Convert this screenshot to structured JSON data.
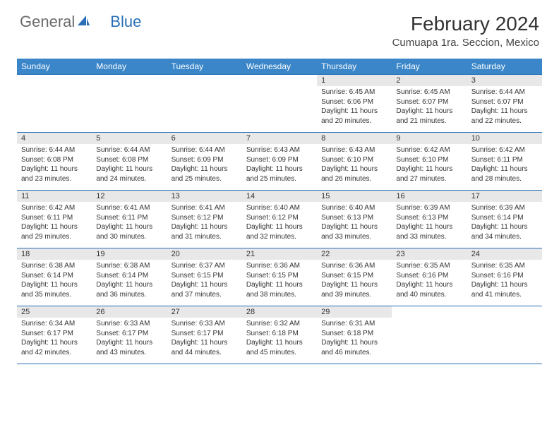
{
  "logo": {
    "text1": "General",
    "text2": "Blue"
  },
  "title": "February 2024",
  "location": "Cumuapa 1ra. Seccion, Mexico",
  "colors": {
    "header_bg": "#3a86c8",
    "header_text": "#ffffff",
    "border": "#2970b8",
    "daynum_bg": "#e8e8e8",
    "text": "#333333",
    "logo_gray": "#6a6a6a",
    "logo_blue": "#2970b8",
    "page_bg": "#ffffff"
  },
  "day_headers": [
    "Sunday",
    "Monday",
    "Tuesday",
    "Wednesday",
    "Thursday",
    "Friday",
    "Saturday"
  ],
  "weeks": [
    [
      {
        "n": "",
        "sr": "",
        "ss": "",
        "dl": ""
      },
      {
        "n": "",
        "sr": "",
        "ss": "",
        "dl": ""
      },
      {
        "n": "",
        "sr": "",
        "ss": "",
        "dl": ""
      },
      {
        "n": "",
        "sr": "",
        "ss": "",
        "dl": ""
      },
      {
        "n": "1",
        "sr": "Sunrise: 6:45 AM",
        "ss": "Sunset: 6:06 PM",
        "dl": "Daylight: 11 hours and 20 minutes."
      },
      {
        "n": "2",
        "sr": "Sunrise: 6:45 AM",
        "ss": "Sunset: 6:07 PM",
        "dl": "Daylight: 11 hours and 21 minutes."
      },
      {
        "n": "3",
        "sr": "Sunrise: 6:44 AM",
        "ss": "Sunset: 6:07 PM",
        "dl": "Daylight: 11 hours and 22 minutes."
      }
    ],
    [
      {
        "n": "4",
        "sr": "Sunrise: 6:44 AM",
        "ss": "Sunset: 6:08 PM",
        "dl": "Daylight: 11 hours and 23 minutes."
      },
      {
        "n": "5",
        "sr": "Sunrise: 6:44 AM",
        "ss": "Sunset: 6:08 PM",
        "dl": "Daylight: 11 hours and 24 minutes."
      },
      {
        "n": "6",
        "sr": "Sunrise: 6:44 AM",
        "ss": "Sunset: 6:09 PM",
        "dl": "Daylight: 11 hours and 25 minutes."
      },
      {
        "n": "7",
        "sr": "Sunrise: 6:43 AM",
        "ss": "Sunset: 6:09 PM",
        "dl": "Daylight: 11 hours and 25 minutes."
      },
      {
        "n": "8",
        "sr": "Sunrise: 6:43 AM",
        "ss": "Sunset: 6:10 PM",
        "dl": "Daylight: 11 hours and 26 minutes."
      },
      {
        "n": "9",
        "sr": "Sunrise: 6:42 AM",
        "ss": "Sunset: 6:10 PM",
        "dl": "Daylight: 11 hours and 27 minutes."
      },
      {
        "n": "10",
        "sr": "Sunrise: 6:42 AM",
        "ss": "Sunset: 6:11 PM",
        "dl": "Daylight: 11 hours and 28 minutes."
      }
    ],
    [
      {
        "n": "11",
        "sr": "Sunrise: 6:42 AM",
        "ss": "Sunset: 6:11 PM",
        "dl": "Daylight: 11 hours and 29 minutes."
      },
      {
        "n": "12",
        "sr": "Sunrise: 6:41 AM",
        "ss": "Sunset: 6:11 PM",
        "dl": "Daylight: 11 hours and 30 minutes."
      },
      {
        "n": "13",
        "sr": "Sunrise: 6:41 AM",
        "ss": "Sunset: 6:12 PM",
        "dl": "Daylight: 11 hours and 31 minutes."
      },
      {
        "n": "14",
        "sr": "Sunrise: 6:40 AM",
        "ss": "Sunset: 6:12 PM",
        "dl": "Daylight: 11 hours and 32 minutes."
      },
      {
        "n": "15",
        "sr": "Sunrise: 6:40 AM",
        "ss": "Sunset: 6:13 PM",
        "dl": "Daylight: 11 hours and 33 minutes."
      },
      {
        "n": "16",
        "sr": "Sunrise: 6:39 AM",
        "ss": "Sunset: 6:13 PM",
        "dl": "Daylight: 11 hours and 33 minutes."
      },
      {
        "n": "17",
        "sr": "Sunrise: 6:39 AM",
        "ss": "Sunset: 6:14 PM",
        "dl": "Daylight: 11 hours and 34 minutes."
      }
    ],
    [
      {
        "n": "18",
        "sr": "Sunrise: 6:38 AM",
        "ss": "Sunset: 6:14 PM",
        "dl": "Daylight: 11 hours and 35 minutes."
      },
      {
        "n": "19",
        "sr": "Sunrise: 6:38 AM",
        "ss": "Sunset: 6:14 PM",
        "dl": "Daylight: 11 hours and 36 minutes."
      },
      {
        "n": "20",
        "sr": "Sunrise: 6:37 AM",
        "ss": "Sunset: 6:15 PM",
        "dl": "Daylight: 11 hours and 37 minutes."
      },
      {
        "n": "21",
        "sr": "Sunrise: 6:36 AM",
        "ss": "Sunset: 6:15 PM",
        "dl": "Daylight: 11 hours and 38 minutes."
      },
      {
        "n": "22",
        "sr": "Sunrise: 6:36 AM",
        "ss": "Sunset: 6:15 PM",
        "dl": "Daylight: 11 hours and 39 minutes."
      },
      {
        "n": "23",
        "sr": "Sunrise: 6:35 AM",
        "ss": "Sunset: 6:16 PM",
        "dl": "Daylight: 11 hours and 40 minutes."
      },
      {
        "n": "24",
        "sr": "Sunrise: 6:35 AM",
        "ss": "Sunset: 6:16 PM",
        "dl": "Daylight: 11 hours and 41 minutes."
      }
    ],
    [
      {
        "n": "25",
        "sr": "Sunrise: 6:34 AM",
        "ss": "Sunset: 6:17 PM",
        "dl": "Daylight: 11 hours and 42 minutes."
      },
      {
        "n": "26",
        "sr": "Sunrise: 6:33 AM",
        "ss": "Sunset: 6:17 PM",
        "dl": "Daylight: 11 hours and 43 minutes."
      },
      {
        "n": "27",
        "sr": "Sunrise: 6:33 AM",
        "ss": "Sunset: 6:17 PM",
        "dl": "Daylight: 11 hours and 44 minutes."
      },
      {
        "n": "28",
        "sr": "Sunrise: 6:32 AM",
        "ss": "Sunset: 6:18 PM",
        "dl": "Daylight: 11 hours and 45 minutes."
      },
      {
        "n": "29",
        "sr": "Sunrise: 6:31 AM",
        "ss": "Sunset: 6:18 PM",
        "dl": "Daylight: 11 hours and 46 minutes."
      },
      {
        "n": "",
        "sr": "",
        "ss": "",
        "dl": ""
      },
      {
        "n": "",
        "sr": "",
        "ss": "",
        "dl": ""
      }
    ]
  ]
}
